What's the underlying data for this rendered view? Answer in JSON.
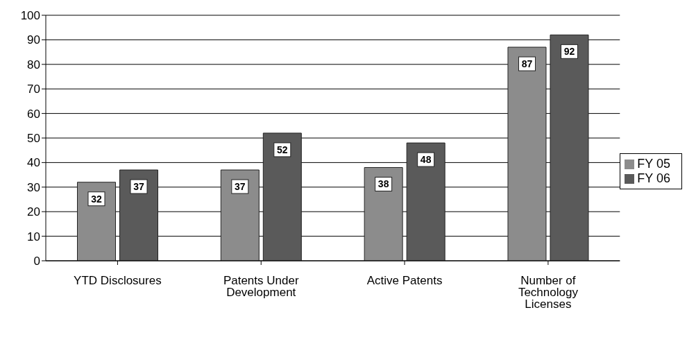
{
  "chart_data": {
    "type": "bar",
    "categories": [
      "YTD Disclosures",
      "Patents Under Development",
      "Active Patents",
      "Number of Technology Licenses"
    ],
    "series": [
      {
        "name": "FY 05",
        "color": "#8c8c8c",
        "values": [
          32,
          37,
          38,
          87
        ]
      },
      {
        "name": "FY 06",
        "color": "#5a5a5a",
        "values": [
          37,
          52,
          48,
          92
        ]
      }
    ],
    "ylim": [
      0,
      100
    ],
    "yticks": [
      0,
      10,
      20,
      30,
      40,
      50,
      60,
      70,
      80,
      90,
      100
    ],
    "grid": "y",
    "legend": "right",
    "data_labels": true
  }
}
